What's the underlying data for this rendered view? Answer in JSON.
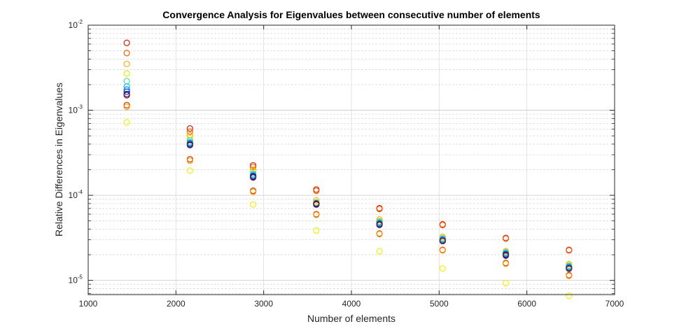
{
  "chart_data": {
    "type": "scatter",
    "title": "Convergence Analysis for Eigenvalues between consecutive number of elements",
    "xlabel": "Number of elements",
    "ylabel": "Relative Differences in Eigenvalues",
    "xlim": [
      1000,
      7000
    ],
    "ylim": [
      6.8e-06,
      0.01
    ],
    "yscale": "log",
    "grid": true,
    "legend": "none",
    "marker": "open-circle",
    "x_ticks": [
      "1000",
      "2000",
      "3000",
      "4000",
      "5000",
      "6000",
      "7000"
    ],
    "y_ticks": [
      {
        "value": 0.01,
        "base": "10",
        "exp": "-2"
      },
      {
        "value": 0.001,
        "base": "10",
        "exp": "-3"
      },
      {
        "value": 0.0001,
        "base": "10",
        "exp": "-4"
      },
      {
        "value": 1e-05,
        "base": "10",
        "exp": "-5"
      }
    ],
    "x": [
      1440,
      2160,
      2880,
      3600,
      4320,
      5040,
      5760,
      6480
    ],
    "series": [
      {
        "color": "#d62000",
        "values": [
          0.0062,
          0.00061,
          0.000225,
          0.000117,
          7.05e-05,
          4.55e-05,
          3.15e-05,
          2.28e-05
        ]
      },
      {
        "color": "#ff5a00",
        "values": [
          0.0047,
          0.00056,
          0.000215,
          0.000113,
          6.9e-05,
          4.48e-05,
          3.1e-05,
          2.25e-05
        ]
      },
      {
        "color": "#ffae00",
        "values": [
          0.0035,
          0.00051,
          0.0002,
          8.7e-05,
          5.2e-05,
          3.25e-05,
          2.2e-05,
          1.55e-05
        ]
      },
      {
        "color": "#e8e800",
        "values": [
          0.0027,
          0.00047,
          0.00019,
          8.3e-05,
          5e-05,
          3.15e-05,
          2.15e-05,
          1.5e-05
        ]
      },
      {
        "color": "#44ddaa",
        "values": [
          0.0022,
          0.00044,
          0.00018,
          8.2e-05,
          4.9e-05,
          3.1e-05,
          2.12e-05,
          1.48e-05
        ]
      },
      {
        "color": "#00c8ff",
        "values": [
          0.0019,
          0.00042,
          0.000175,
          8.1e-05,
          4.8e-05,
          3.05e-05,
          2.1e-05,
          1.45e-05
        ]
      },
      {
        "color": "#0090ff",
        "values": [
          0.00175,
          0.00041,
          0.00017,
          8e-05,
          4.7e-05,
          3e-05,
          2.05e-05,
          1.42e-05
        ]
      },
      {
        "color": "#2040ff",
        "values": [
          0.00165,
          0.0004,
          0.000168,
          7.9e-05,
          4.6e-05,
          2.95e-05,
          2.02e-05,
          1.4e-05
        ]
      },
      {
        "color": "#000090",
        "values": [
          0.00155,
          0.00039,
          0.000165,
          7.8e-05,
          4.5e-05,
          2.9e-05,
          1.98e-05,
          1.38e-05
        ]
      },
      {
        "color": "#8a2020",
        "values": [
          0.0015,
          0.0004,
          0.000162,
          8e-05,
          4.6e-05,
          2.9e-05,
          1.95e-05,
          1.37e-05
        ]
      },
      {
        "color": "#e03000",
        "values": [
          0.00115,
          0.000265,
          0.000113,
          6e-05,
          3.55e-05,
          2.28e-05,
          1.6e-05,
          1.15e-05
        ]
      },
      {
        "color": "#ffa000",
        "values": [
          0.0011,
          0.000255,
          0.00011,
          5.9e-05,
          3.5e-05,
          2.25e-05,
          1.57e-05,
          1.13e-05
        ]
      },
      {
        "color": "#f5f000",
        "values": [
          0.00072,
          0.000195,
          7.8e-05,
          3.85e-05,
          2.2e-05,
          1.38e-05,
          9.3e-06,
          6.6e-06
        ]
      }
    ]
  }
}
